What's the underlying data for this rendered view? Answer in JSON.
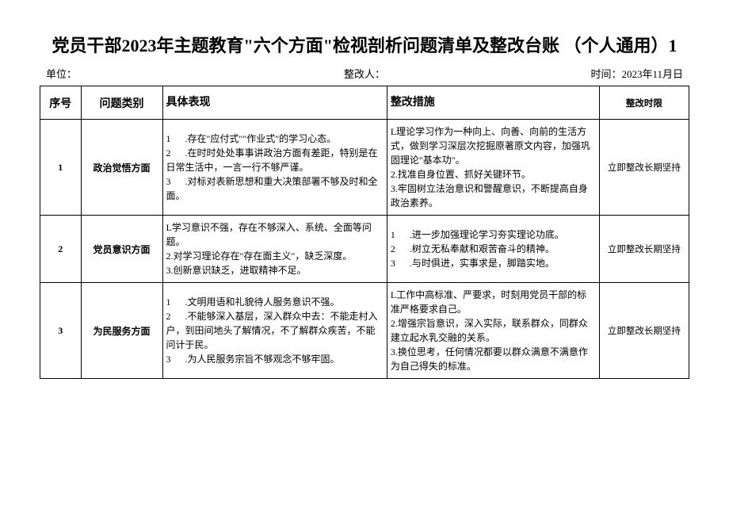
{
  "title": "党员干部2023年主题教育\"六个方面\"检视剖析问题清单及整改台账\n（个人通用）1",
  "header": {
    "unit_label": "单位：",
    "reformer_label": "整改人：",
    "time_label": "时间：2023年11月日"
  },
  "table": {
    "columns": [
      "序号",
      "问题类别",
      "具体表现",
      "整改措施",
      "整改时限"
    ],
    "rows": [
      {
        "seq": "1",
        "category": "政治觉悟方面",
        "manifest": "1      .存在\"应付式\"\"作业式\"的学习心态。\n2      .在时时处处事事讲政治方面有差距，特别是在日常生活中，一言一行不够严谨。\n3      .对标对表新思想和重大决策部署不够及时和全面。",
        "measure": "L理论学习作为一种向上、向善、向前的生活方式，做到学习深层次挖掘原著原文内容，加强巩固理论\"基本功\"。\n2.找准自身位置、抓好关键环节。\n3.牢固树立法治意识和警醒意识，不断提高自身政治素养。",
        "deadline": "立即整改长期坚持"
      },
      {
        "seq": "2",
        "category": "党员意识方面",
        "manifest": "L学习意识不强，存在不够深入、系统、全面等问题。\n2.对学习理论存在\"存在面主义\"，缺乏深度。\n3.创新意识缺乏，进取精神不足。",
        "measure": "1      .进一步加强理论学习夯实理论功底。\n2      .树立无私奉献和艰苦奋斗的精神。\n3      .与时俱进，实事求是，脚踏实地。",
        "deadline": "立即整改长期坚持"
      },
      {
        "seq": "3",
        "category": "为民服务方面",
        "manifest": "1      .文明用语和礼貌待人服务意识不强。\n2      .不能够深入基层，深入群众中去：不能走村入户，到田间地头了解情况，不了解群众疾苦，不能问计于民。\n3      .为人民服务宗旨不够观念不够牢固。",
        "measure": "L工作中高标准、严要求，时刻用党员干部的标准严格要求自己。\n2.增强宗旨意识，深入实际，联系群众，同群众建立起水乳交融的关系。\n3.换位思考，任何情况都要以群众满意不满意作为自己得失的标准。",
        "deadline": "立即整改长期坚持"
      }
    ]
  },
  "styles": {
    "background_color": "#ffffff",
    "border_color": "#000000",
    "title_fontsize": 22,
    "header_fontsize": 13,
    "th_fontsize": 14,
    "td_fontsize": 12
  }
}
